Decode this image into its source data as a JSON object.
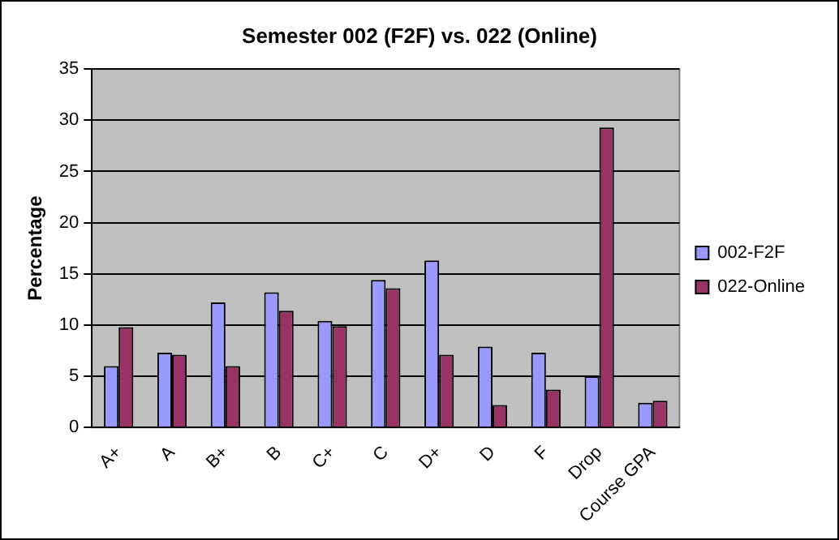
{
  "chart_data": {
    "type": "bar",
    "title": "Semester 002 (F2F) vs. 022 (Online)",
    "ylabel": "Percentage",
    "categories": [
      "A+",
      "A",
      "B+",
      "B",
      "C+",
      "C",
      "D+",
      "D",
      "F",
      "Drop",
      "Course GPA"
    ],
    "series": [
      {
        "name": "002-F2F",
        "color": "#9999ff",
        "values": [
          6.0,
          7.3,
          12.2,
          13.2,
          10.4,
          14.4,
          16.3,
          7.9,
          7.3,
          5.0,
          2.4
        ]
      },
      {
        "name": "022-Online",
        "color": "#993366",
        "values": [
          9.8,
          7.1,
          6.0,
          11.4,
          9.9,
          13.6,
          7.1,
          2.2,
          3.7,
          29.3,
          2.6
        ]
      }
    ],
    "ylim": [
      0,
      35
    ],
    "yticks": [
      0,
      5,
      10,
      15,
      20,
      25,
      30,
      35
    ],
    "grid": "y",
    "legend": "right"
  }
}
